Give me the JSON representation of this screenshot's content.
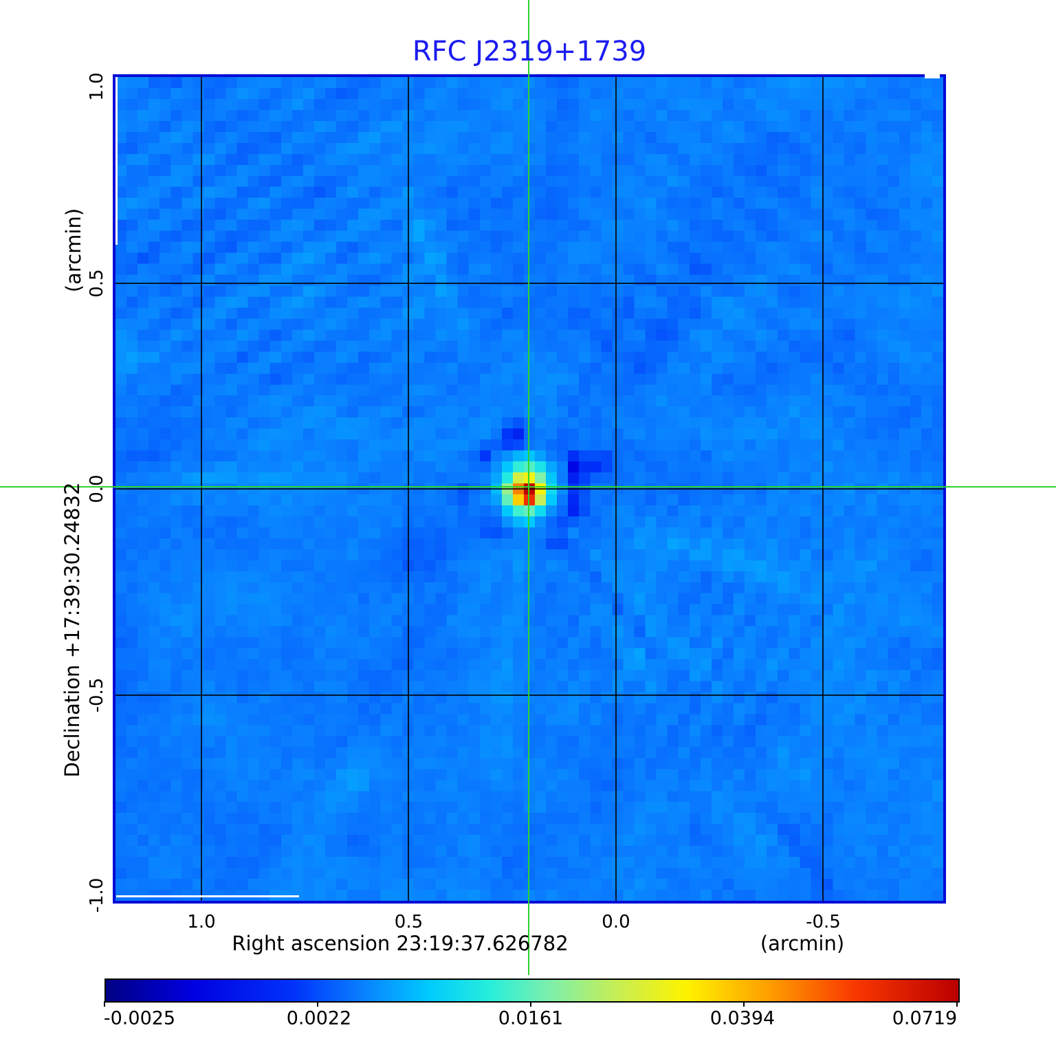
{
  "title": {
    "text": "RFC J2319+1739"
  },
  "axis": {
    "x_label_main": "Right ascension  23:19:37.626782",
    "x_label_unit": "(arcmin)",
    "y_label_main": "Declination  +17:39:30.24832",
    "y_label_unit": "(arcmin)",
    "x_ticks": [
      "1.0",
      "0.5",
      "0.0",
      "-0.5"
    ],
    "y_ticks": [
      "1.0",
      "0.5",
      "0.0",
      "-0.5",
      "-1.0"
    ]
  },
  "colorbar": {
    "tick_labels": [
      "-0.0025",
      "0.0022",
      "0.0161",
      "0.0394",
      "0.0719"
    ]
  },
  "colors": {
    "title_blue": "#1b1bf0",
    "frame_blue": "#000bd6",
    "crosshair_green": "#2ed32e",
    "grid_black": "#000000"
  },
  "chart_data": {
    "type": "heatmap",
    "title": "RFC J2319+1739",
    "xlabel": "Right ascension 23:19:37.626782 (arcmin)",
    "ylabel": "Declination +17:39:30.24832 (arcmin)",
    "x_range_arcmin": [
      1.2073,
      -0.7894
    ],
    "y_range_arcmin": [
      1.0,
      -1.0
    ],
    "x_tick_values": [
      1.0,
      0.5,
      0.0,
      -0.5
    ],
    "y_tick_values": [
      1.0,
      0.5,
      0.0,
      -0.5,
      -1.0
    ],
    "grid": true,
    "crosshair_arcmin": {
      "x": 0.21,
      "y": 0.0
    },
    "source": {
      "name": "RFC J2319+1739",
      "ra": "23:19:37.626782",
      "dec": "+17:39:30.24832",
      "peak_value": 0.0719,
      "core_matrix": [
        [
          0.004,
          0.005,
          0.007,
          0.008,
          0.006,
          0.004,
          0.003
        ],
        [
          0.005,
          0.008,
          0.013,
          0.015,
          0.011,
          0.006,
          0.004
        ],
        [
          0.006,
          0.012,
          0.026,
          0.03,
          0.018,
          0.008,
          0.004
        ],
        [
          0.007,
          0.02,
          0.046,
          0.072,
          0.031,
          0.01,
          0.005
        ],
        [
          0.006,
          0.016,
          0.036,
          0.058,
          0.024,
          0.008,
          0.004
        ],
        [
          0.004,
          0.008,
          0.014,
          0.016,
          0.01,
          0.005,
          0.003
        ],
        [
          0.003,
          0.005,
          0.007,
          0.008,
          0.005,
          0.003,
          0.002
        ]
      ]
    },
    "colorbar": {
      "min": -0.0025,
      "max": 0.0719,
      "tick_values": [
        -0.0025,
        0.0022,
        0.0161,
        0.0394,
        0.0719
      ],
      "scale": "sqrt",
      "colormap": "jet"
    }
  }
}
